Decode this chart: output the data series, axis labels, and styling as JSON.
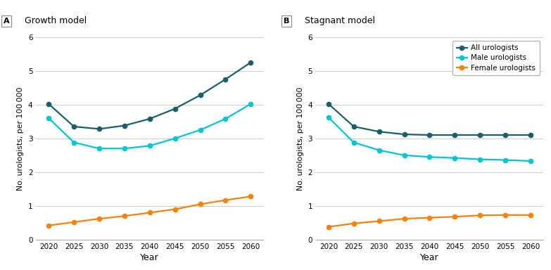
{
  "years": [
    2020,
    2025,
    2030,
    2035,
    2040,
    2045,
    2050,
    2055,
    2060
  ],
  "panel_A": {
    "title": "Growth model",
    "all_urologists": [
      4.02,
      3.35,
      3.28,
      3.38,
      3.58,
      3.88,
      4.28,
      4.75,
      5.25
    ],
    "male_urologists": [
      3.6,
      2.88,
      2.7,
      2.7,
      2.78,
      3.0,
      3.25,
      3.58,
      4.02
    ],
    "female_urologists": [
      0.42,
      0.52,
      0.62,
      0.7,
      0.8,
      0.9,
      1.05,
      1.17,
      1.28
    ]
  },
  "panel_B": {
    "title": "Stagnant model",
    "all_urologists": [
      4.02,
      3.35,
      3.2,
      3.12,
      3.1,
      3.1,
      3.1,
      3.1,
      3.1
    ],
    "male_urologists": [
      3.62,
      2.88,
      2.65,
      2.5,
      2.45,
      2.42,
      2.38,
      2.36,
      2.33
    ],
    "female_urologists": [
      0.38,
      0.48,
      0.55,
      0.62,
      0.65,
      0.68,
      0.72,
      0.73,
      0.73
    ]
  },
  "colors": {
    "all": "#1b5e6b",
    "male": "#00c5d4",
    "female": "#f5820a"
  },
  "legend_labels": [
    "All urologists",
    "Male urologists",
    "Female urologists"
  ],
  "ylabel": "No. urologists, per 100 000",
  "xlabel": "Year",
  "ylim": [
    0,
    6
  ],
  "yticks": [
    0,
    1,
    2,
    3,
    4,
    5,
    6
  ],
  "label_A": "A",
  "label_B": "B",
  "marker": "o",
  "markersize": 4.5,
  "linewidth": 1.6
}
